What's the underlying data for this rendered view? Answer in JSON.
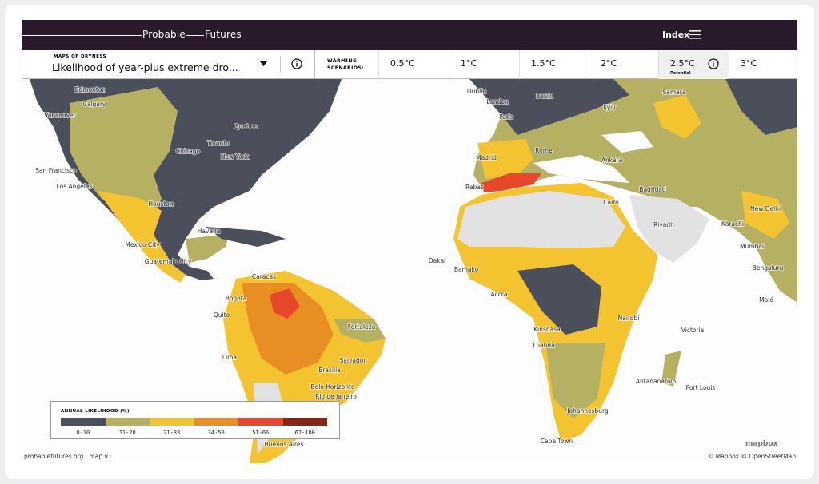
{
  "header": {
    "brand_first": "Probable",
    "brand_second": "Futures",
    "index": "Index"
  },
  "controls": {
    "map_group": "MAPS OF DRYNESS",
    "map_title": "Likelihood of year-plus extreme dro...",
    "scenarios_label": "WARMING SCENARIOS:",
    "selected": 4,
    "scenarios": [
      {
        "label": "0.5°C"
      },
      {
        "label": "1°C"
      },
      {
        "label": "1.5°C"
      },
      {
        "label": "2°C"
      },
      {
        "label": "2.5°C",
        "note": "Potential"
      },
      {
        "label": "3°C"
      }
    ]
  },
  "map": {
    "cities": [
      "Edmonton",
      "Calgary",
      "Vancouver",
      "Quebec",
      "Toronto",
      "Chicago",
      "New York",
      "San Francisco",
      "Los Angeles",
      "Houston",
      "Havana",
      "Mexico City",
      "Guatemala City",
      "Caracas",
      "Bogota",
      "Quito",
      "Fortaleza",
      "Lima",
      "Salvador",
      "Brasilia",
      "Belo Horizonte",
      "Rio de Janeiro",
      "Buenos Aires",
      "Dublin",
      "London",
      "Berlin",
      "Paris",
      "Kyiv",
      "Samara",
      "Madrid",
      "Rome",
      "Ankara",
      "Rabat",
      "Baghdad",
      "Cairo",
      "Riyadh",
      "New Delhi",
      "Karachi",
      "Mumbai",
      "Bengaluru",
      "Dakar",
      "Bamako",
      "Accra",
      "Kinshasa",
      "Nairobi",
      "Luanda",
      "Victoria",
      "Malé",
      "Antananarivo",
      "Port Louis",
      "Johannesburg",
      "Cape Town"
    ]
  },
  "legend": {
    "title": "ANNUAL LIKELIHOOD (%)",
    "items": [
      {
        "label": "0-10",
        "color": "#4b4e5b"
      },
      {
        "label": "11-20",
        "color": "#b6b063"
      },
      {
        "label": "21-33",
        "color": "#f4c430"
      },
      {
        "label": "34-50",
        "color": "#e98e22"
      },
      {
        "label": "51-66",
        "color": "#e7482b"
      },
      {
        "label": "67-100",
        "color": "#8b2317"
      }
    ]
  },
  "footer": {
    "credit": "probablefutures.org · map v1",
    "logo": "mapbox",
    "attribution": "© Mapbox © OpenStreetMap"
  }
}
